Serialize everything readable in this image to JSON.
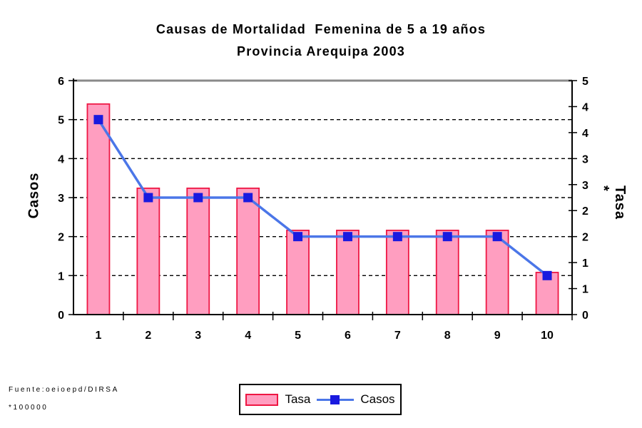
{
  "title": {
    "line1": "Causas de Mortalidad  Femenina de 5 a 19 años",
    "line2": "Provincia Arequipa 2003"
  },
  "legend": {
    "tasa_label": "Tasa",
    "casos_label": "Casos"
  },
  "footer": {
    "source": "Fuente:oeioepd/DIRSA",
    "footnote": "*100000"
  },
  "colors": {
    "bar_fill": "#FF9EC0",
    "bar_border": "#EE1743",
    "line": "#4B76E8",
    "marker": "#1A1ADF",
    "grid": "#000000",
    "top_border": "#898989",
    "axis": "#000000"
  },
  "chart_data": {
    "type": "combo",
    "title": "Causas de Mortalidad Femenina de 5 a 19 años — Provincia Arequipa 2003",
    "categories": [
      "1",
      "2",
      "3",
      "4",
      "5",
      "6",
      "7",
      "8",
      "9",
      "10"
    ],
    "series": [
      {
        "name": "Tasa",
        "type": "bar",
        "axis": "right",
        "values": [
          4.5,
          2.7,
          2.7,
          2.7,
          1.8,
          1.8,
          1.8,
          1.8,
          1.8,
          0.9
        ]
      },
      {
        "name": "Casos",
        "type": "line",
        "axis": "left",
        "values": [
          5,
          3,
          3,
          3,
          2,
          2,
          2,
          2,
          2,
          1
        ]
      }
    ],
    "left_axis": {
      "title": "Casos",
      "range": [
        0,
        6
      ],
      "tick_labels": [
        "6",
        "5",
        "4",
        "3",
        "2",
        "1",
        "0"
      ]
    },
    "right_axis": {
      "title": "Tasa *",
      "range": [
        0,
        5
      ],
      "tick_labels": [
        "5",
        "4",
        "4",
        "3",
        "3",
        "2",
        "2",
        "1",
        "1",
        "0"
      ]
    },
    "x_axis": {
      "tick_labels": [
        "1",
        "2",
        "3",
        "4",
        "5",
        "6",
        "7",
        "8",
        "9",
        "10"
      ]
    },
    "gridlines": {
      "left_values": [
        1,
        2,
        3,
        4,
        5
      ],
      "style": "dashed"
    },
    "legend_position": "bottom",
    "source_note": "Fuente:oeioepd/DIRSA",
    "footnote": "*100000"
  }
}
